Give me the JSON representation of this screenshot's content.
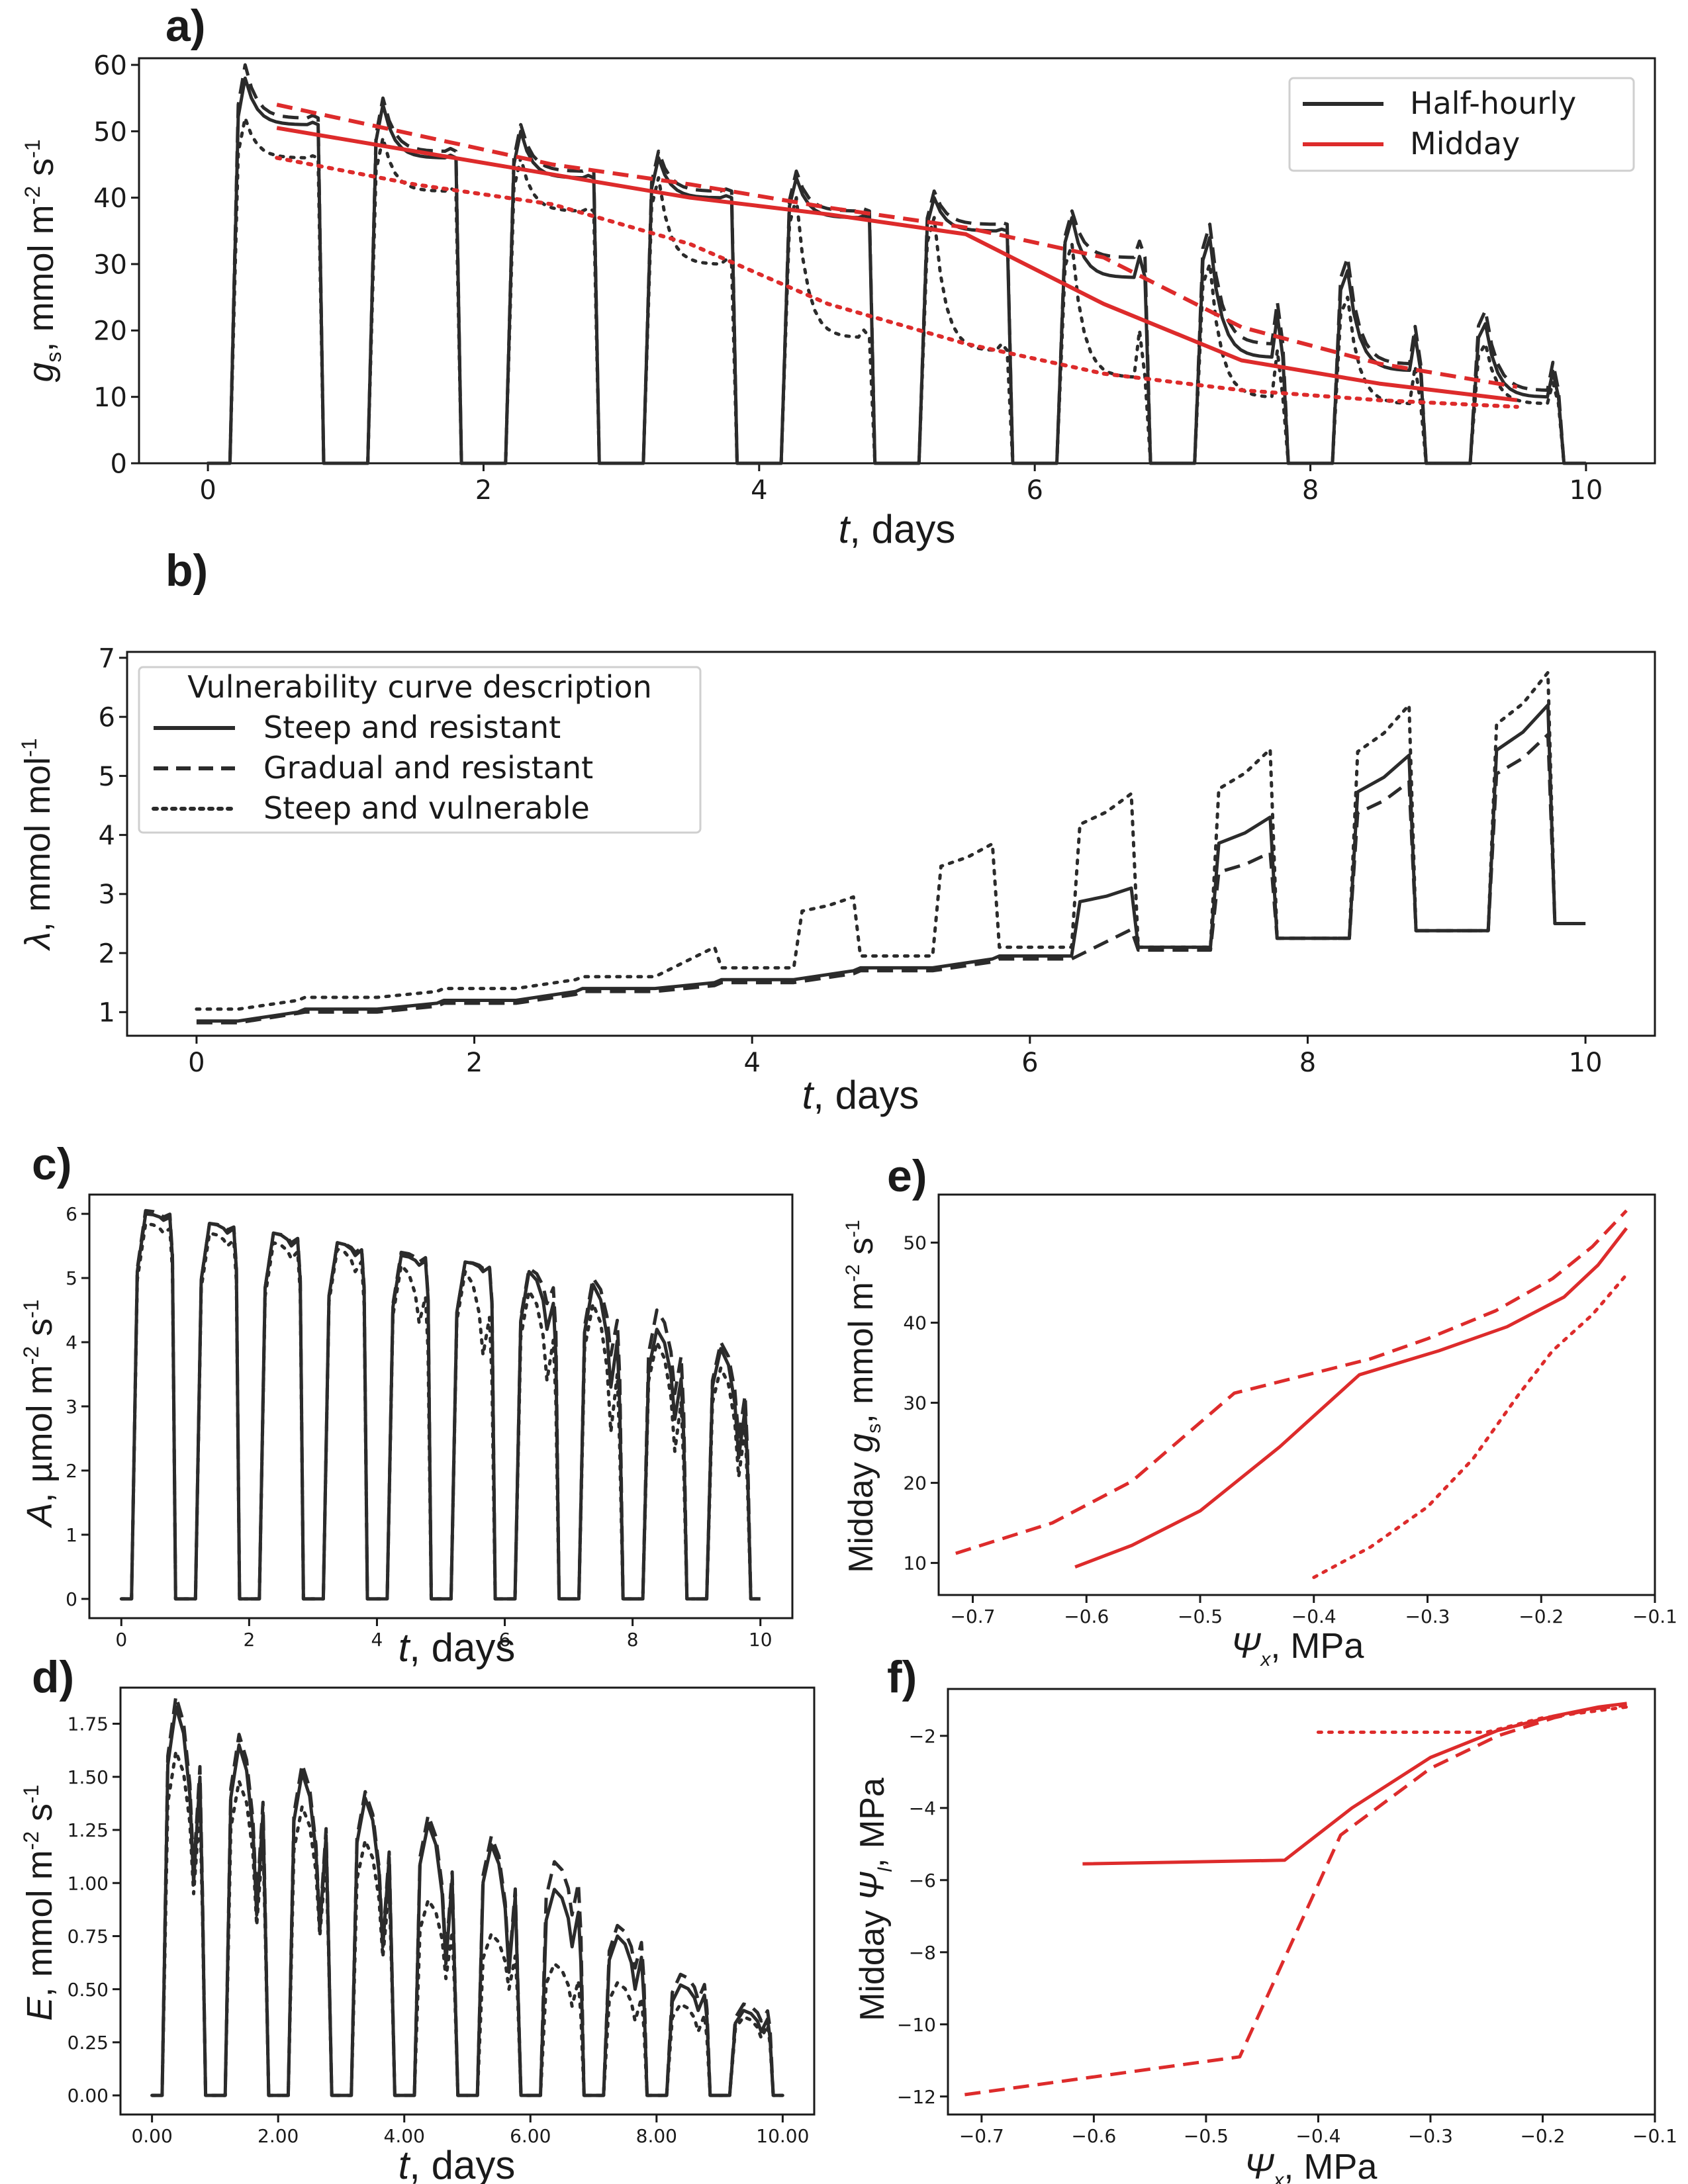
{
  "colors": {
    "half_hourly": "#2b2b2b",
    "midday": "#dd2b2b",
    "axes": "#1a1a1a"
  },
  "styles": {
    "Steep and resistant": "solid",
    "Gradual and resistant": "dashed",
    "Steep and vulnerable": "dotted"
  },
  "panels": {
    "a": {
      "label": "a)",
      "ylabel": "g",
      "ysub": "s",
      "yunit": ", mmol m",
      "yexp1": "-2",
      "yunit2": " s",
      "yexp2": "-1",
      "xlabel_t": "t",
      "xlabel_rest": ", days"
    },
    "b": {
      "label": "b)",
      "ylabel": "λ",
      "yunit": ", mmol mol",
      "yexp1": "-1",
      "xlabel_t": "t",
      "xlabel_rest": ", days"
    },
    "c": {
      "label": "c)",
      "ylabel": "A",
      "yunit": ", µmol m",
      "yexp1": "-2",
      "yunit2": " s",
      "yexp2": "-1",
      "xlabel_t": "t",
      "xlabel_rest": ", days"
    },
    "d": {
      "label": "d)",
      "ylabel": "E",
      "yunit": ", mmol m",
      "yexp1": "-2",
      "yunit2": " s",
      "yexp2": "-1",
      "xlabel_t": "t",
      "xlabel_rest": ", days"
    },
    "e": {
      "label": "e)",
      "ylabel_pre": "Midday ",
      "ylabel": "g",
      "ysub": "s",
      "yunit": ", mmol m",
      "yexp1": "-2",
      "yunit2": " s",
      "yexp2": "-1",
      "xlabel_sym": "Ψ",
      "xsub": "x",
      "xlabel_rest": ", MPa"
    },
    "f": {
      "label": "f)",
      "ylabel_pre": "Midday ",
      "ylabel": "Ψ",
      "ysub": "l",
      "yunit": ", MPa",
      "xlabel_sym": "Ψ",
      "xsub": "x",
      "xlabel_rest": ", MPa"
    }
  },
  "legend_a": {
    "entries": [
      "Half-hourly",
      "Midday"
    ]
  },
  "legend_b": {
    "title": "Vulnerability curve description",
    "entries": [
      "Steep and resistant",
      "Gradual and resistant",
      "Steep and vulnerable"
    ]
  },
  "chart_data": [
    {
      "id": "a",
      "type": "line",
      "xlabel": "t, days",
      "ylabel": "g_s, mmol m-2 s-1",
      "xlim": [
        -0.5,
        10.5
      ],
      "ylim": [
        0,
        61
      ],
      "xticks": [
        0,
        2,
        4,
        6,
        8,
        10
      ],
      "yticks": [
        0,
        10,
        20,
        30,
        40,
        50,
        60
      ],
      "legend": "top-right",
      "daily_peaks": {
        "Steep and resistant": [
          58,
          54,
          50,
          46,
          43,
          40,
          37,
          34,
          29,
          21
        ],
        "Gradual and resistant": [
          60,
          55,
          51,
          47,
          44,
          41,
          38,
          36,
          31,
          23
        ],
        "Steep and vulnerable": [
          52,
          49,
          46,
          43,
          40,
          37,
          33,
          30,
          25,
          18
        ]
      },
      "daily_trough": {
        "Steep and resistant": [
          51,
          46,
          43,
          40,
          37,
          35,
          28,
          16,
          14,
          10
        ],
        "Gradual and resistant": [
          52,
          47,
          44,
          41,
          38,
          36,
          31,
          18,
          15,
          11
        ],
        "Steep and vulnerable": [
          46,
          41,
          38,
          30,
          19,
          17,
          13,
          10,
          9,
          9
        ]
      },
      "midday_series": [
        {
          "name": "Steep and resistant",
          "x": [
            0.5,
            1.5,
            2.5,
            3.5,
            4.5,
            5.5,
            6.5,
            7.5,
            8.5,
            9.5
          ],
          "y": [
            50.5,
            47,
            43.5,
            40,
            37.5,
            34.5,
            24,
            15.5,
            12,
            9.5
          ]
        },
        {
          "name": "Gradual and resistant",
          "x": [
            0.5,
            1.5,
            2.5,
            3.5,
            4.5,
            5.5,
            6.5,
            7.5,
            8.5,
            9.5
          ],
          "y": [
            54,
            49.5,
            45,
            42,
            38.5,
            35.5,
            31,
            20.5,
            15,
            11.5
          ]
        },
        {
          "name": "Steep and vulnerable",
          "x": [
            0.5,
            1.5,
            2.5,
            3.5,
            4.5,
            5.5,
            6.5,
            7.5,
            8.5,
            9.5
          ],
          "y": [
            46,
            42,
            39,
            33,
            24,
            18,
            13.5,
            11,
            9.5,
            8.5
          ]
        }
      ]
    },
    {
      "id": "b",
      "type": "line",
      "xlabel": "t, days",
      "ylabel": "λ, mmol mol-1",
      "xlim": [
        -0.5,
        10.5
      ],
      "ylim": [
        0.6,
        7.1
      ],
      "xticks": [
        0,
        2,
        4,
        6,
        8,
        10
      ],
      "yticks": [
        1,
        2,
        3,
        4,
        5,
        6,
        7
      ],
      "legend": "top-left",
      "night_values": {
        "Steep and resistant": [
          0.85,
          1.05,
          1.2,
          1.4,
          1.55,
          1.75,
          1.95,
          2.1,
          2.25,
          2.38,
          2.5
        ],
        "Gradual and resistant": [
          0.82,
          1.0,
          1.15,
          1.35,
          1.5,
          1.7,
          1.9,
          2.05,
          2.25,
          2.38,
          2.5
        ],
        "Steep and vulnerable": [
          1.05,
          1.25,
          1.4,
          1.6,
          1.75,
          1.95,
          2.1,
          2.1,
          2.25,
          2.38,
          2.5
        ]
      },
      "day_end_values": {
        "Steep and resistant": [
          1.0,
          1.15,
          1.35,
          1.5,
          1.7,
          1.9,
          3.1,
          4.3,
          5.35,
          6.2
        ],
        "Gradual and resistant": [
          0.98,
          1.1,
          1.3,
          1.45,
          1.65,
          1.85,
          2.4,
          3.7,
          4.9,
          5.7
        ],
        "Steep and vulnerable": [
          1.2,
          1.35,
          1.55,
          2.1,
          2.95,
          3.85,
          4.7,
          5.45,
          6.2,
          6.75
        ]
      }
    },
    {
      "id": "c",
      "type": "line",
      "xlabel": "t, days",
      "ylabel": "A, µmol m-2 s-1",
      "xlim": [
        -0.5,
        10.5
      ],
      "ylim": [
        -0.3,
        6.3
      ],
      "xticks": [
        0,
        2,
        4,
        6,
        8,
        10
      ],
      "yticks": [
        0,
        1,
        2,
        3,
        4,
        5,
        6
      ],
      "daily_peaks": {
        "Steep and resistant": [
          6.0,
          5.85,
          5.7,
          5.55,
          5.35,
          5.25,
          5.1,
          4.9,
          4.2,
          3.9
        ],
        "Gradual and resistant": [
          6.05,
          5.85,
          5.7,
          5.55,
          5.4,
          5.25,
          5.15,
          5.0,
          4.5,
          4.0
        ],
        "Steep and vulnerable": [
          5.85,
          5.7,
          5.55,
          5.45,
          5.2,
          5.1,
          4.8,
          4.6,
          4.0,
          3.6
        ]
      },
      "daily_trough": {
        "Steep and resistant": [
          5.9,
          5.7,
          5.5,
          5.35,
          5.2,
          5.1,
          4.2,
          3.3,
          2.8,
          2.2
        ],
        "Gradual and resistant": [
          5.95,
          5.75,
          5.55,
          5.4,
          5.25,
          5.15,
          4.6,
          3.8,
          3.2,
          2.5
        ],
        "Steep and vulnerable": [
          5.7,
          5.5,
          5.3,
          5.1,
          4.3,
          3.8,
          3.4,
          2.6,
          2.3,
          1.9
        ]
      }
    },
    {
      "id": "d",
      "type": "line",
      "xlabel": "t, days",
      "ylabel": "E, mmol m-2 s-1",
      "xlim": [
        -0.5,
        10.5
      ],
      "ylim": [
        -0.09,
        1.92
      ],
      "xticks": [
        0,
        2,
        4,
        6,
        8,
        10
      ],
      "yticks": [
        0.0,
        0.25,
        0.5,
        0.75,
        1.0,
        1.25,
        1.5,
        1.75
      ],
      "daily_peaks": {
        "Steep and resistant": [
          1.83,
          1.65,
          1.52,
          1.4,
          1.28,
          1.18,
          0.97,
          0.75,
          0.52,
          0.4
        ],
        "Gradual and resistant": [
          1.88,
          1.7,
          1.56,
          1.43,
          1.32,
          1.22,
          1.1,
          0.8,
          0.57,
          0.43
        ],
        "Steep and vulnerable": [
          1.62,
          1.48,
          1.36,
          1.2,
          0.92,
          0.76,
          0.62,
          0.53,
          0.43,
          0.37
        ]
      },
      "daily_trough": {
        "Steep and resistant": [
          1.0,
          0.85,
          0.78,
          0.7,
          0.62,
          0.58,
          0.7,
          0.5,
          0.4,
          0.3
        ],
        "Gradual and resistant": [
          1.05,
          0.9,
          0.8,
          0.72,
          0.65,
          0.6,
          0.85,
          0.6,
          0.45,
          0.35
        ],
        "Steep and vulnerable": [
          0.95,
          0.8,
          0.75,
          0.65,
          0.55,
          0.5,
          0.42,
          0.35,
          0.3,
          0.27
        ]
      }
    },
    {
      "id": "e",
      "type": "line",
      "xlabel": "Ψx, MPa",
      "ylabel": "Midday g_s, mmol m-2 s-1",
      "xlim": [
        -0.73,
        -0.1
      ],
      "ylim": [
        6,
        56
      ],
      "xticks": [
        -0.7,
        -0.6,
        -0.5,
        -0.4,
        -0.3,
        -0.2,
        -0.1
      ],
      "yticks": [
        10,
        20,
        30,
        40,
        50
      ],
      "series": [
        {
          "name": "Steep and resistant",
          "x": [
            -0.61,
            -0.56,
            -0.5,
            -0.43,
            -0.36,
            -0.29,
            -0.23,
            -0.18,
            -0.15,
            -0.125
          ],
          "y": [
            9.5,
            12.2,
            16.5,
            24.5,
            33.5,
            36.5,
            39.5,
            43.2,
            47.2,
            51.8
          ]
        },
        {
          "name": "Gradual and resistant",
          "x": [
            -0.715,
            -0.63,
            -0.56,
            -0.47,
            -0.35,
            -0.3,
            -0.24,
            -0.19,
            -0.155,
            -0.125
          ],
          "y": [
            11.2,
            15.0,
            20.2,
            31.2,
            35.5,
            38.0,
            41.5,
            45.5,
            49.5,
            54.0
          ]
        },
        {
          "name": "Steep and vulnerable",
          "x": [
            -0.4,
            -0.35,
            -0.3,
            -0.26,
            -0.22,
            -0.19,
            -0.155,
            -0.125
          ],
          "y": [
            8.2,
            12.0,
            17.0,
            23.0,
            31.0,
            36.5,
            41.0,
            46.0
          ]
        }
      ]
    },
    {
      "id": "f",
      "type": "line",
      "xlabel": "Ψx, MPa",
      "ylabel": "Midday Ψl, MPa",
      "xlim": [
        -0.73,
        -0.1
      ],
      "ylim": [
        -12.5,
        -0.7
      ],
      "xticks": [
        -0.7,
        -0.6,
        -0.5,
        -0.4,
        -0.3,
        -0.2,
        -0.1
      ],
      "yticks": [
        -12,
        -10,
        -8,
        -6,
        -4,
        -2
      ],
      "series": [
        {
          "name": "Steep and resistant",
          "x": [
            -0.61,
            -0.43,
            -0.37,
            -0.3,
            -0.24,
            -0.19,
            -0.15,
            -0.125
          ],
          "y": [
            -5.55,
            -5.45,
            -4.0,
            -2.6,
            -1.85,
            -1.45,
            -1.2,
            -1.1
          ]
        },
        {
          "name": "Gradual and resistant",
          "x": [
            -0.715,
            -0.47,
            -0.38,
            -0.3,
            -0.24,
            -0.19,
            -0.155,
            -0.125
          ],
          "y": [
            -11.95,
            -10.9,
            -4.75,
            -2.9,
            -2.0,
            -1.5,
            -1.25,
            -1.15
          ]
        },
        {
          "name": "Steep and vulnerable",
          "x": [
            -0.4,
            -0.3,
            -0.25,
            -0.2,
            -0.15,
            -0.125
          ],
          "y": [
            -1.9,
            -1.9,
            -1.9,
            -1.5,
            -1.3,
            -1.2
          ]
        }
      ]
    }
  ]
}
